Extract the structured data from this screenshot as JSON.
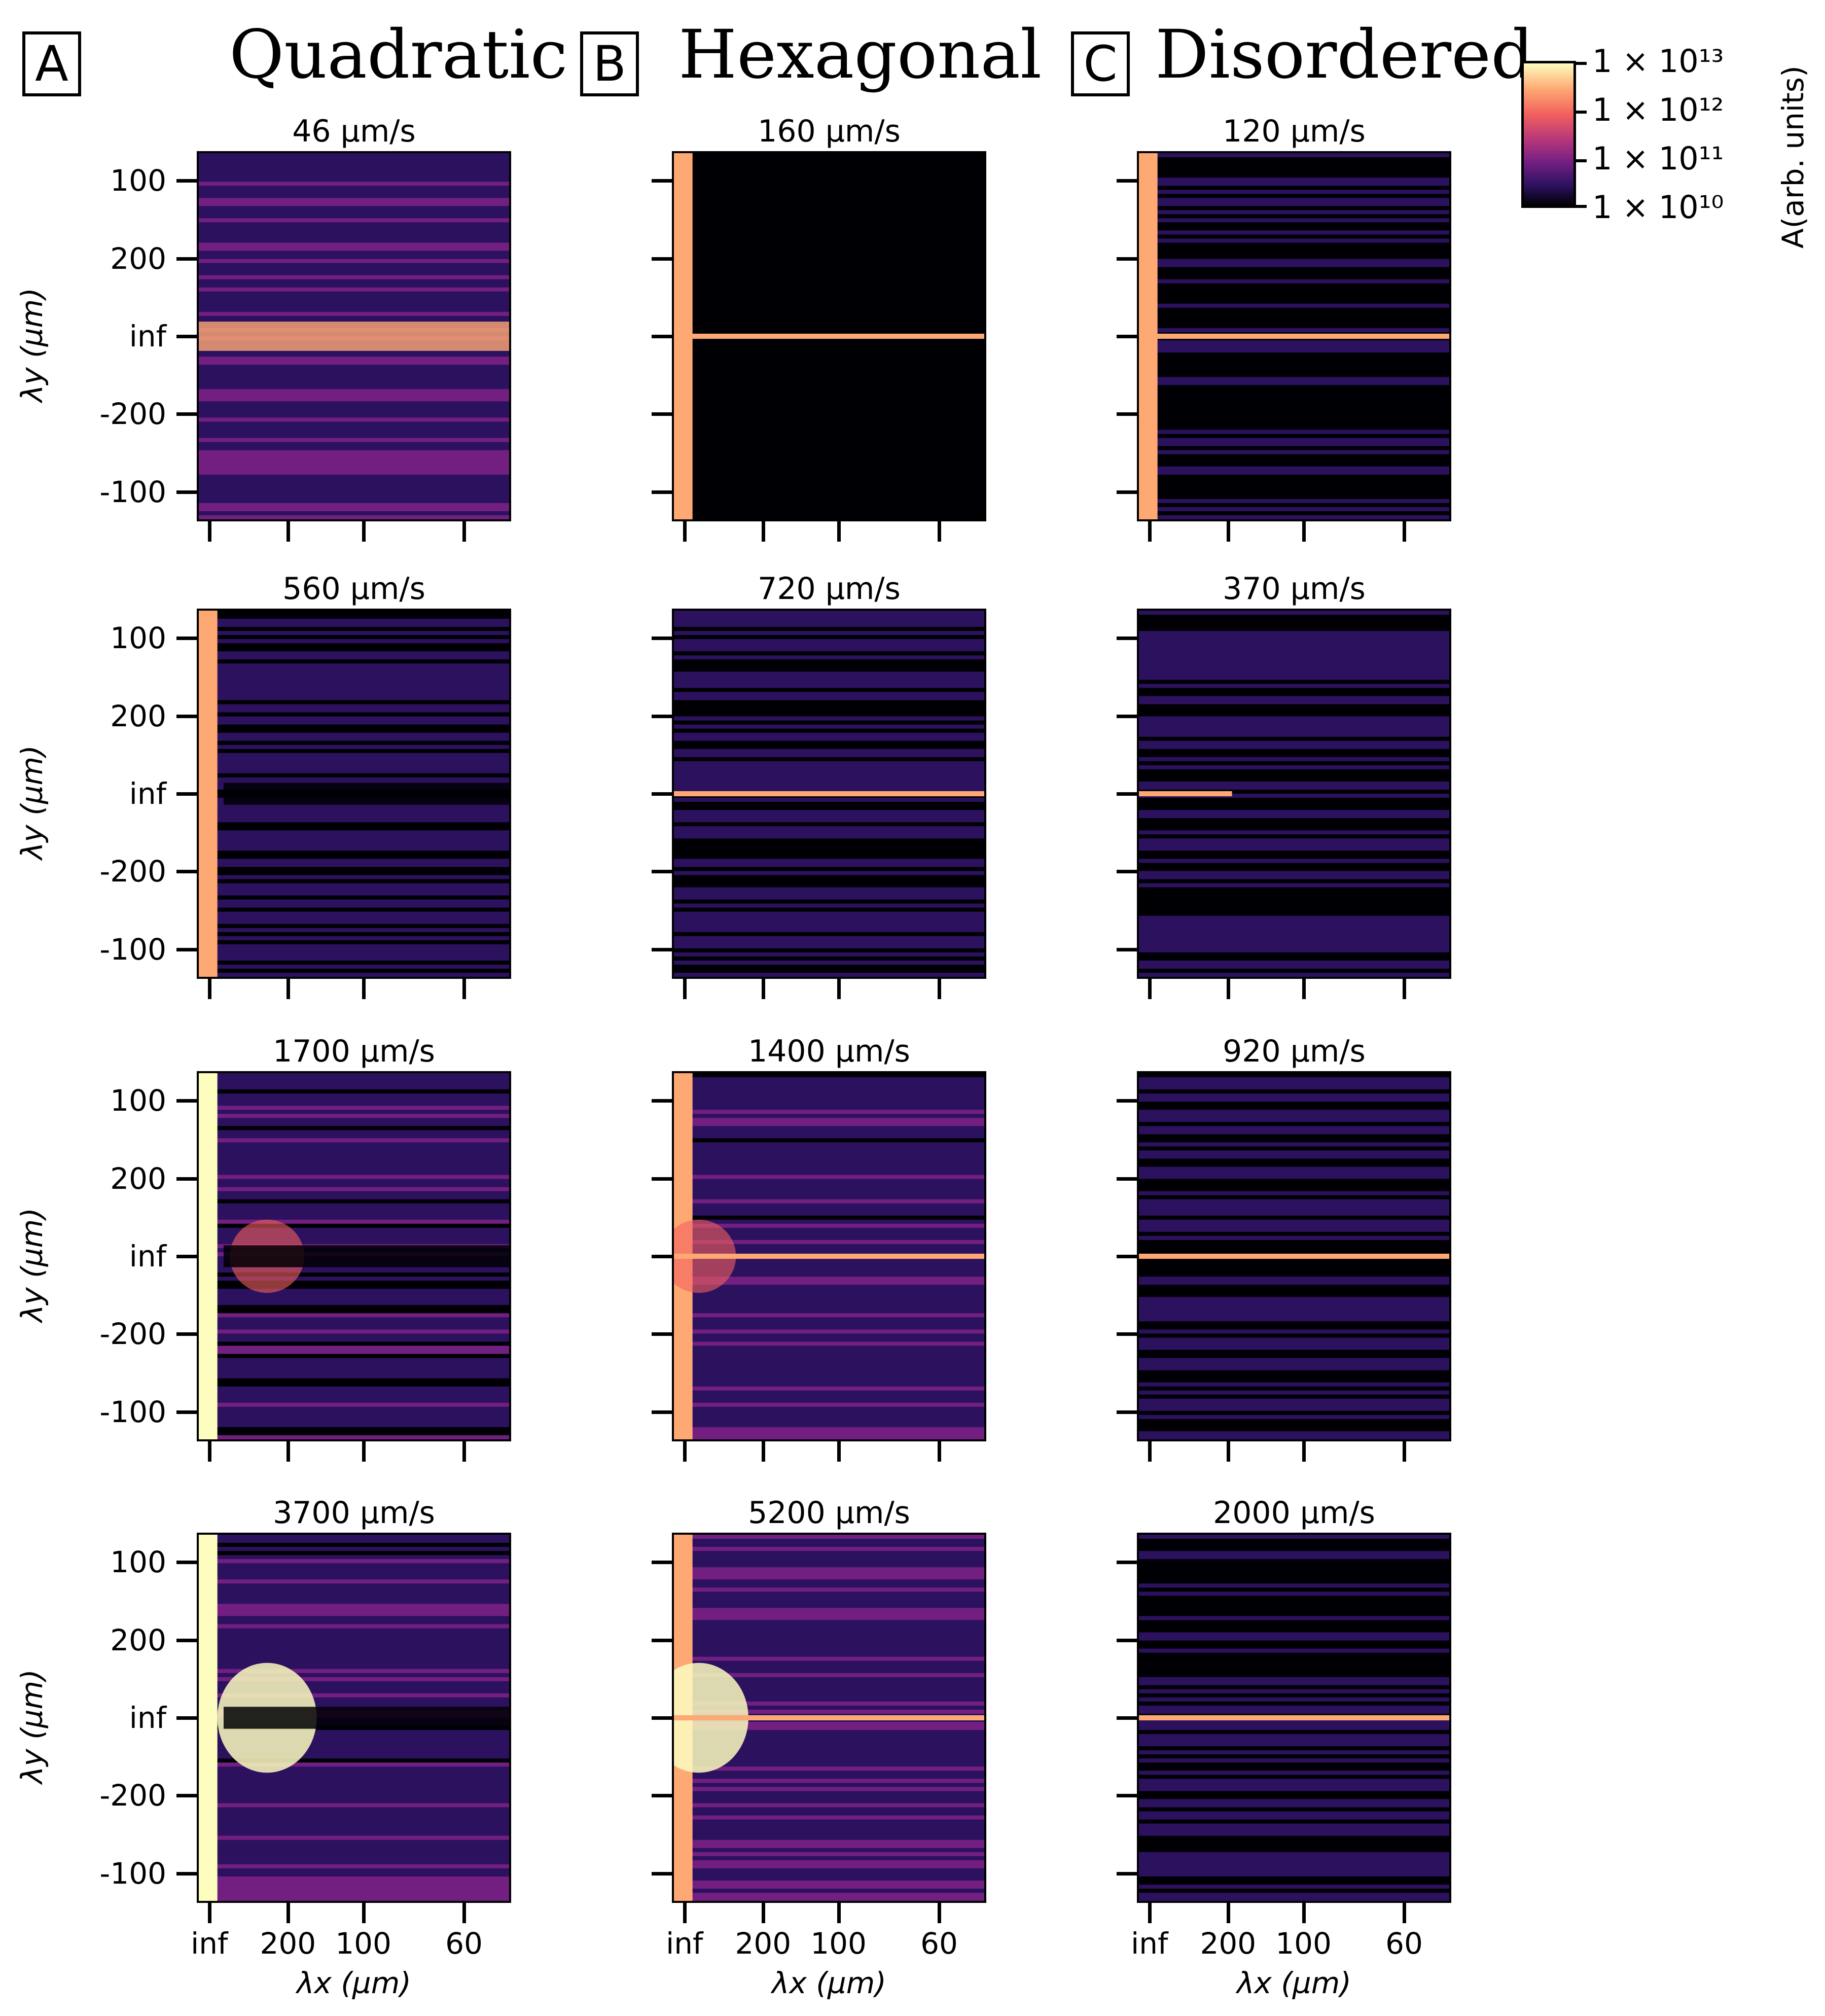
{
  "columns": [
    {
      "letter": "A",
      "title": "Quadratic",
      "speeds": [
        "46 µm/s",
        "560 µm/s",
        "1700 µm/s",
        "3700 µm/s"
      ]
    },
    {
      "letter": "B",
      "title": "Hexagonal",
      "speeds": [
        "160 µm/s",
        "720 µm/s",
        "1400 µm/s",
        "5200 µm/s"
      ]
    },
    {
      "letter": "C",
      "title": "Disordered",
      "speeds": [
        "120 µm/s",
        "370 µm/s",
        "920 µm/s",
        "2000 µm/s"
      ]
    }
  ],
  "axes": {
    "y_ticks": [
      "100",
      "200",
      "inf",
      "-200",
      "-100"
    ],
    "x_ticks": [
      "inf",
      "200",
      "100",
      "60"
    ],
    "y_label": "λy (µm)",
    "x_label": "λx (µm)"
  },
  "colorbar": {
    "labels": [
      "1 × 10¹³",
      "1 × 10¹²",
      "1 × 10¹¹",
      "1 × 10¹⁰"
    ],
    "title": "A(arb. units)",
    "colormap": [
      "#000004",
      "#2c115f",
      "#721f81",
      "#b5367a",
      "#f1605d",
      "#fea973",
      "#fcfdbf"
    ]
  },
  "chart_data": [
    {
      "type": "heatmap",
      "panel": "A",
      "title": "46 µm/s",
      "row": 0,
      "col": 0,
      "brightness": 0.45,
      "features": [
        "horizontal band at λy=inf"
      ]
    },
    {
      "type": "heatmap",
      "panel": "B",
      "title": "160 µm/s",
      "row": 0,
      "col": 1,
      "brightness": 0.05,
      "features": [
        "bright left column at λx=inf",
        "thin line at λy=inf"
      ]
    },
    {
      "type": "heatmap",
      "panel": "C",
      "title": "120 µm/s",
      "row": 0,
      "col": 2,
      "brightness": 0.2,
      "features": [
        "bright left column at λx=inf",
        "thin line at λy=inf"
      ]
    },
    {
      "type": "heatmap",
      "panel": "A",
      "title": "560 µm/s",
      "row": 1,
      "col": 0,
      "brightness": 0.3,
      "features": [
        "bright left column at λx=inf",
        "dark dashed line at λy=inf"
      ]
    },
    {
      "type": "heatmap",
      "panel": "B",
      "title": "720 µm/s",
      "row": 1,
      "col": 1,
      "brightness": 0.3,
      "features": [
        "thin line at λy=inf"
      ]
    },
    {
      "type": "heatmap",
      "panel": "C",
      "title": "370 µm/s",
      "row": 1,
      "col": 2,
      "brightness": 0.3,
      "features": [
        "short bright spot at λy=inf"
      ]
    },
    {
      "type": "heatmap",
      "panel": "A",
      "title": "1700 µm/s",
      "row": 2,
      "col": 0,
      "brightness": 0.35,
      "features": [
        "bright left column",
        "bright lobes around λy=inf"
      ]
    },
    {
      "type": "heatmap",
      "panel": "B",
      "title": "1400 µm/s",
      "row": 2,
      "col": 1,
      "brightness": 0.4,
      "features": [
        "glow near λx=inf",
        "thin line at λy=inf"
      ]
    },
    {
      "type": "heatmap",
      "panel": "C",
      "title": "920 µm/s",
      "row": 2,
      "col": 2,
      "brightness": 0.25,
      "features": [
        "thin line at λy=inf"
      ]
    },
    {
      "type": "heatmap",
      "panel": "A",
      "title": "3700 µm/s",
      "row": 3,
      "col": 0,
      "brightness": 0.4,
      "features": [
        "bright left column",
        "strong lobes around λy=inf"
      ]
    },
    {
      "type": "heatmap",
      "panel": "B",
      "title": "5200 µm/s",
      "row": 3,
      "col": 1,
      "brightness": 0.45,
      "features": [
        "strong blob near λx=inf",
        "thin line at λy=inf"
      ]
    },
    {
      "type": "heatmap",
      "panel": "C",
      "title": "2000 µm/s",
      "row": 3,
      "col": 2,
      "brightness": 0.25,
      "features": [
        "thin line at λy=inf"
      ]
    }
  ]
}
